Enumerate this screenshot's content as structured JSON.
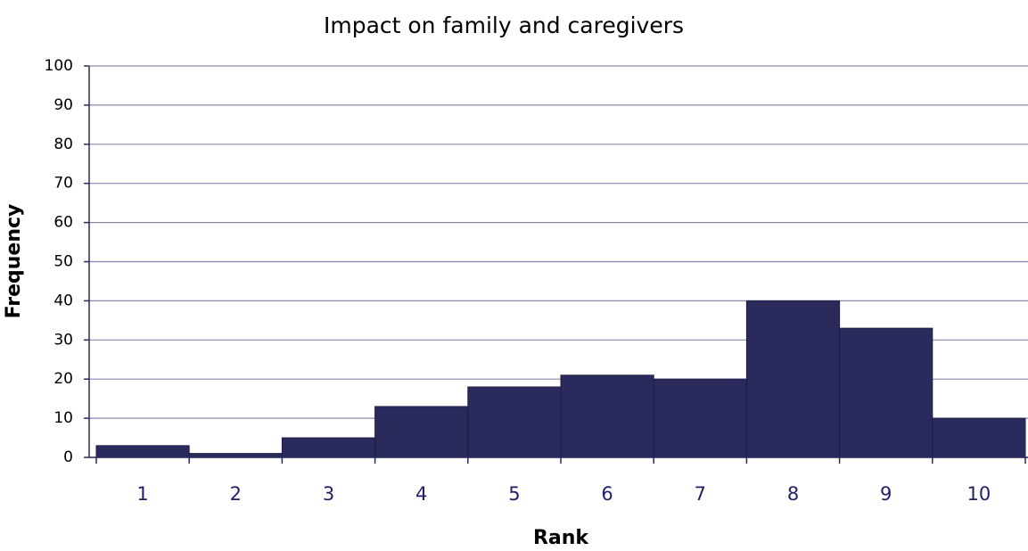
{
  "chart_data": {
    "type": "bar",
    "title": "Impact on family and caregivers",
    "x_label": "Rank",
    "y_label": "Frequency",
    "categories": [
      "1",
      "2",
      "3",
      "4",
      "5",
      "6",
      "7",
      "8",
      "9",
      "10"
    ],
    "values": [
      3,
      1,
      5,
      13,
      18,
      21,
      20,
      40,
      33,
      10
    ],
    "color": "#2b2a5c",
    "ylim": [
      0,
      100
    ],
    "yticks": [
      0,
      10,
      20,
      30,
      40,
      50,
      60,
      70,
      80,
      90,
      100
    ],
    "grid": true
  }
}
